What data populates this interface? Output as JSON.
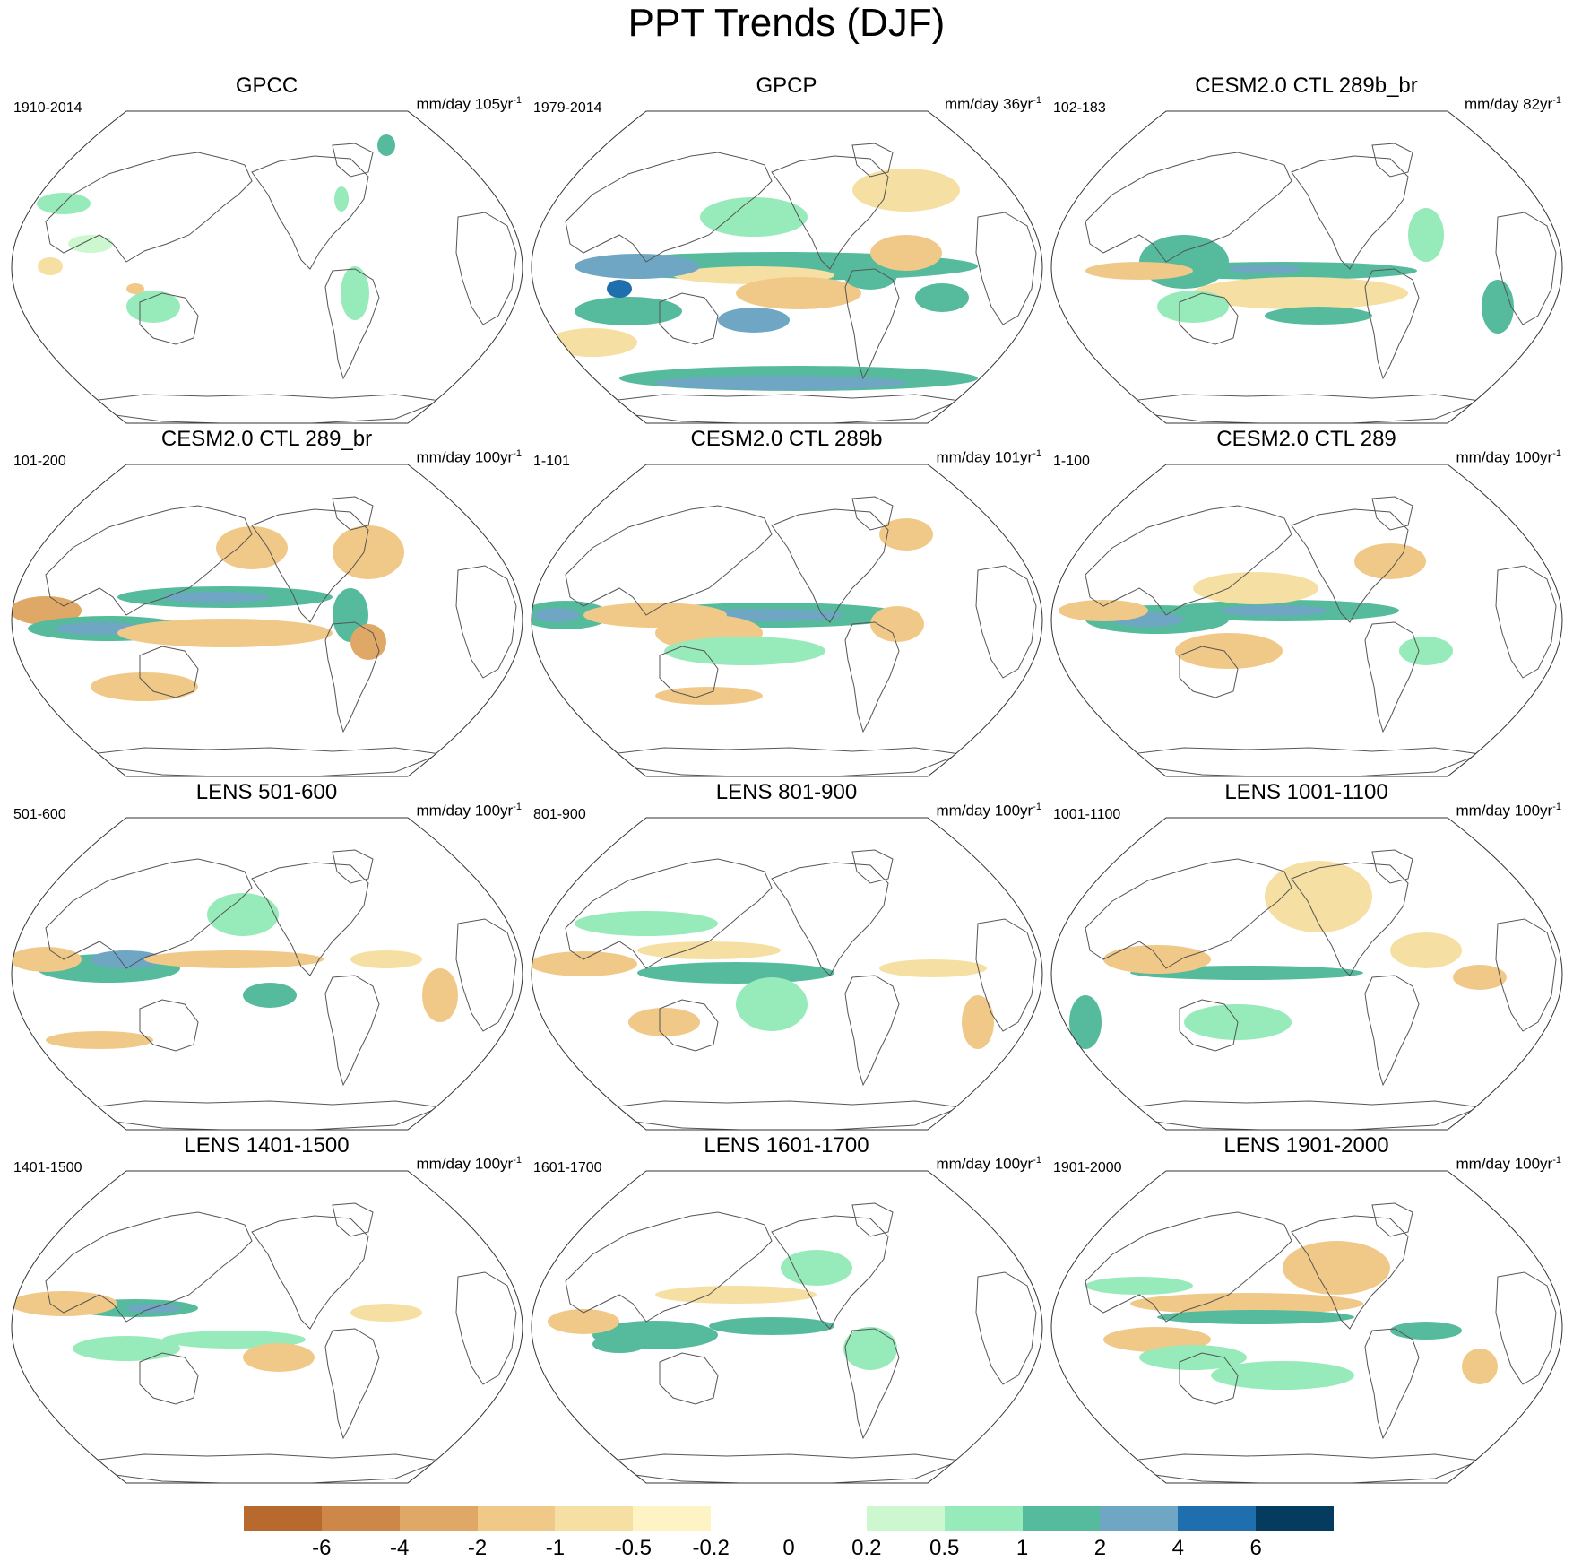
{
  "title": "PPT Trends (DJF)",
  "panels": [
    {
      "title": "GPCC",
      "period": "1910-2014",
      "units": "mm/day 105yr",
      "units_exp": "-1"
    },
    {
      "title": "GPCP",
      "period": "1979-2014",
      "units": "mm/day 36yr",
      "units_exp": "-1"
    },
    {
      "title": "CESM2.0 CTL 289b_br",
      "period": "102-183",
      "units": "mm/day 82yr",
      "units_exp": "-1"
    },
    {
      "title": "CESM2.0 CTL 289_br",
      "period": "101-200",
      "units": "mm/day 100yr",
      "units_exp": "-1"
    },
    {
      "title": "CESM2.0 CTL 289b",
      "period": "1-101",
      "units": "mm/day 101yr",
      "units_exp": "-1"
    },
    {
      "title": "CESM2.0 CTL 289",
      "period": "1-100",
      "units": "mm/day 100yr",
      "units_exp": "-1"
    },
    {
      "title": "LENS 501-600",
      "period": "501-600",
      "units": "mm/day 100yr",
      "units_exp": "-1"
    },
    {
      "title": "LENS 801-900",
      "period": "801-900",
      "units": "mm/day 100yr",
      "units_exp": "-1"
    },
    {
      "title": "LENS 1001-1100",
      "period": "1001-1100",
      "units": "mm/day 100yr",
      "units_exp": "-1"
    },
    {
      "title": "LENS 1401-1500",
      "period": "1401-1500",
      "units": "mm/day 100yr",
      "units_exp": "-1"
    },
    {
      "title": "LENS 1601-1700",
      "period": "1601-1700",
      "units": "mm/day 100yr",
      "units_exp": "-1"
    },
    {
      "title": "LENS 1901-2000",
      "period": "1901-2000",
      "units": "mm/day 100yr",
      "units_exp": "-1"
    }
  ],
  "colorbar": {
    "colors": [
      "#b8692e",
      "#cd8748",
      "#dfa866",
      "#f0c988",
      "#f6dfa2",
      "#fdf3c5",
      "#ffffff",
      "#ffffff",
      "#cdf8cf",
      "#97eaba",
      "#55bb9c",
      "#6fa6c4",
      "#1f6eae",
      "#053b5e"
    ],
    "labels": [
      "-6",
      "-4",
      "-2",
      "-1",
      "-0.5",
      "-0.2",
      "0",
      "0.2",
      "0.5",
      "1",
      "2",
      "4",
      "6"
    ]
  }
}
